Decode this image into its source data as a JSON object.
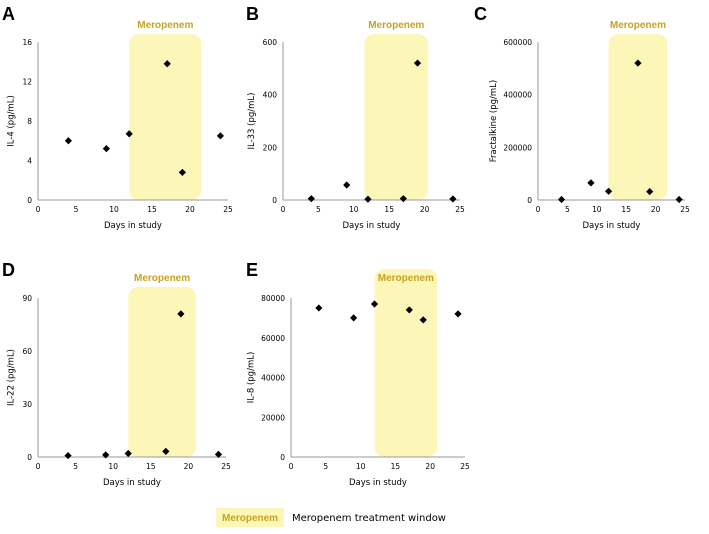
{
  "chart_data": [
    {
      "type": "scatter",
      "panel_label": "A",
      "xlabel": "Days in study",
      "ylabel": "IL-4 (pg/mL)",
      "xlim": [
        0,
        25
      ],
      "ylim": [
        0,
        16
      ],
      "xticks": [
        "0",
        "5",
        "10",
        "15",
        "20",
        "25"
      ],
      "yticks": [
        "0",
        "4",
        "8",
        "12",
        "16"
      ],
      "x": [
        4,
        9,
        12,
        17,
        19,
        24
      ],
      "y": [
        6.0,
        5.2,
        6.7,
        13.8,
        2.8,
        6.5
      ],
      "shaded_window": {
        "label": "Meropenem",
        "from": 12,
        "to": 21.5
      }
    },
    {
      "type": "scatter",
      "panel_label": "B",
      "xlabel": "Days in study",
      "ylabel": "IL-33 (pg/mL)",
      "xlim": [
        0,
        25
      ],
      "ylim": [
        0,
        600
      ],
      "xticks": [
        "0",
        "5",
        "10",
        "15",
        "20",
        "25"
      ],
      "yticks": [
        "0",
        "200",
        "400",
        "600"
      ],
      "x": [
        4,
        9,
        12,
        17,
        19,
        24
      ],
      "y": [
        5,
        57,
        3,
        5,
        520,
        4
      ],
      "shaded_window": {
        "label": "Meropenem",
        "from": 11.5,
        "to": 20.5
      }
    },
    {
      "type": "scatter",
      "panel_label": "C",
      "xlabel": "Days in study",
      "ylabel": "Fractalkine (pg/mL)",
      "xlim": [
        0,
        25
      ],
      "ylim": [
        0,
        600000
      ],
      "xticks": [
        "0",
        "5",
        "10",
        "15",
        "20",
        "25"
      ],
      "yticks": [
        "0",
        "200000",
        "400000",
        "600000"
      ],
      "x": [
        4,
        9,
        12,
        17,
        19,
        24
      ],
      "y": [
        2000,
        65000,
        33000,
        520000,
        32000,
        2000
      ],
      "shaded_window": {
        "label": "Meropenem",
        "from": 12,
        "to": 22
      }
    },
    {
      "type": "scatter",
      "panel_label": "D",
      "xlabel": "Days in study",
      "ylabel": "IL-22 (pg/mL)",
      "xlim": [
        0,
        25
      ],
      "ylim": [
        0,
        90
      ],
      "xticks": [
        "0",
        "5",
        "10",
        "15",
        "20",
        "25"
      ],
      "yticks": [
        "0",
        "30",
        "60",
        "90"
      ],
      "x": [
        4,
        9,
        12,
        17,
        19,
        24
      ],
      "y": [
        0.8,
        1.2,
        2.0,
        3.2,
        81,
        1.5
      ],
      "shaded_window": {
        "label": "Meropenem",
        "from": 12,
        "to": 21
      }
    },
    {
      "type": "scatter",
      "panel_label": "E",
      "xlabel": "Days in study",
      "ylabel": "IL-8 (pg/mL)",
      "xlim": [
        0,
        25
      ],
      "ylim": [
        0,
        80000
      ],
      "xticks": [
        "0",
        "5",
        "10",
        "15",
        "20",
        "25"
      ],
      "yticks": [
        "0",
        "20000",
        "40000",
        "60000",
        "80000"
      ],
      "x": [
        4,
        9,
        12,
        17,
        19,
        24
      ],
      "y": [
        75000,
        70000,
        77000,
        74000,
        69000,
        72000
      ],
      "shaded_window": {
        "label": "Meropenem",
        "from": 12,
        "to": 21
      }
    }
  ],
  "legend": {
    "swatch_label": "Meropenem",
    "text": "Meropenem treatment window"
  },
  "colors": {
    "shade": "#fcf6b9",
    "shade_text": "#c7a321",
    "marker": "#000000",
    "axis": "#9a9a9a"
  }
}
